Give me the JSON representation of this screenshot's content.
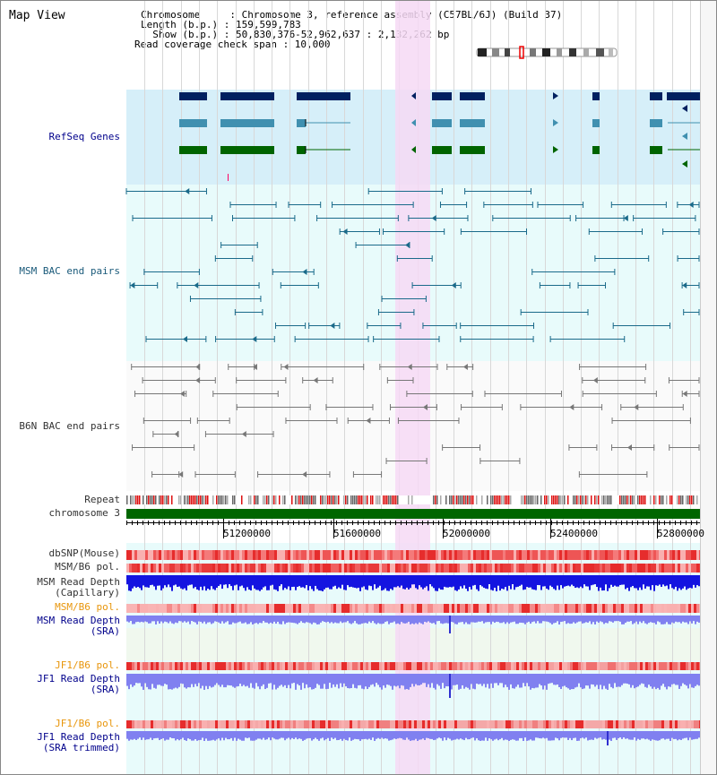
{
  "page": {
    "title": "Map View"
  },
  "info": {
    "chromosome_line": "Chromosome     : Chromosome 3, reference assembly (C57BL/6J) (Build 37)",
    "length_line": "Length (b.p.) : 159,599,783",
    "show_line": "  Show (b.p.) : 50,830,376-52,962,637 : 2,132,262 bp",
    "coverage_line": "Read coverage check span : 10,000"
  },
  "tracks": {
    "refseq": "RefSeq Genes",
    "msm_bac": "MSM BAC end pairs",
    "b6n_bac": "B6N BAC end pairs",
    "repeat": "Repeat",
    "chromosome": "chromosome 3",
    "dbsnp": "dbSNP(Mouse)",
    "msm_b6_pol_1": "MSM/B6 pol.",
    "msm_read_depth_cap_1": "MSM Read Depth",
    "msm_read_depth_cap_2": "(Capillary)",
    "msm_b6_pol_2": "MSM/B6 pol.",
    "msm_read_depth_sra_1": "MSM Read Depth",
    "msm_read_depth_sra_2": "(SRA)",
    "jf1_b6_pol_1": "JF1/B6 pol.",
    "jf1_read_depth_sra_1": "JF1 Read Depth",
    "jf1_read_depth_sra_2": "(SRA)",
    "jf1_b6_pol_2": "JF1/B6 pol.",
    "jf1_read_depth_trim_1": "JF1 Read Depth",
    "jf1_read_depth_trim_2": "(SRA trimmed)"
  },
  "axis": {
    "ticks": [
      "51200000",
      "51600000",
      "52000000",
      "52400000",
      "52800000"
    ]
  },
  "colors": {
    "highlight": "#f6d9f4",
    "refseq_bg": "#d6eff9",
    "msm_bg": "#e8fbfb",
    "refseq_dark": "#002060",
    "refseq_mid": "#4090b0",
    "refseq_green": "#006400",
    "msm_line": "#1a6a8a",
    "b6n_line": "#777777",
    "chrom_green": "#006600",
    "snp_red": "#ee4444",
    "depth_blue": "#1414e0",
    "depth_light": "#8080f0"
  }
}
